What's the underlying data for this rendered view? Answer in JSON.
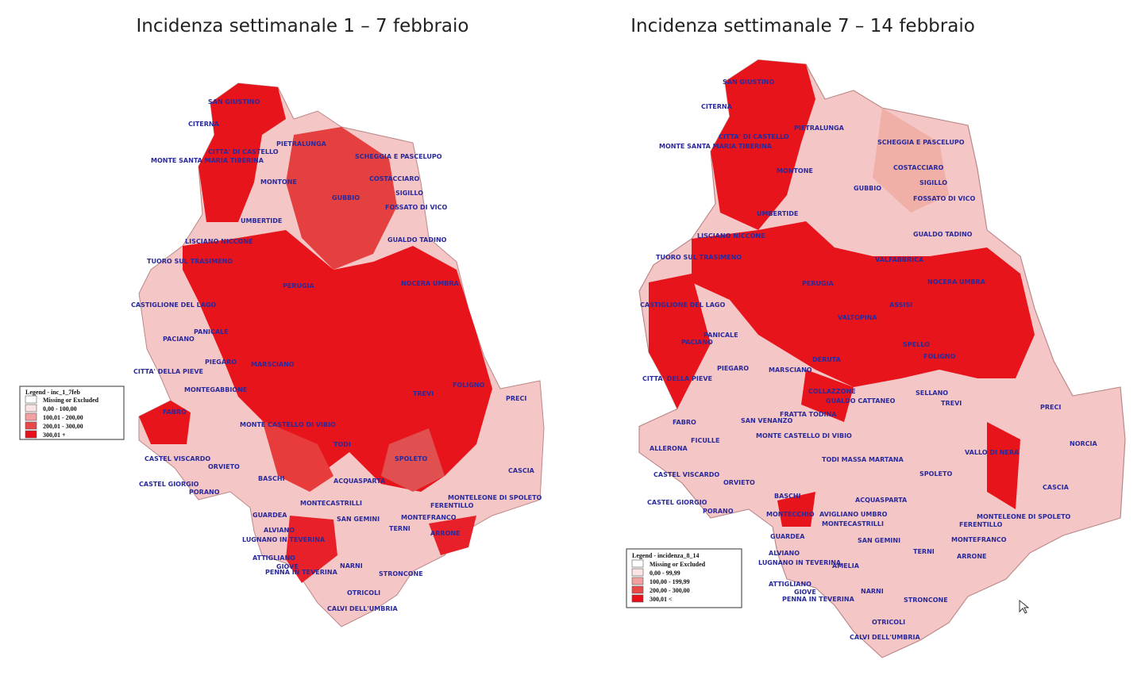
{
  "maps": [
    {
      "title": "Incidenza settimanale 1 – 7 febbraio",
      "legend": {
        "title": "Legend - inc_1_7feb",
        "items": [
          "Missing or Excluded",
          "0,00 - 100,00",
          "100,01 - 200,00",
          "200,01 - 300,00",
          "300,01 +"
        ]
      },
      "places": [
        "SAN GIUSTINO",
        "CITERNA",
        "CITTA' DI CASTELLO",
        "MONTE SANTA MARIA TIBERINA",
        "PIETRALUNGA",
        "SCHEGGIA E PASCELUPO",
        "MONTONE",
        "COSTACCIARO",
        "SIGILLO",
        "GUBBIO",
        "FOSSATO DI VICO",
        "UMBERTIDE",
        "GUALDO TADINO",
        "LISCIANO NICCONE",
        "TUORO SUL TRASIMENO",
        "CASTIGLIONE DEL LAGO",
        "PERUGIA",
        "NOCERA UMBRA",
        "PANICALE",
        "PACIANO",
        "PIEGARO",
        "CITTA' DELLA PIEVE",
        "MARSCIANO",
        "MONTEGABBIONE",
        "FABRO",
        "MONTE CASTELLO DI VIBIO",
        "TODI",
        "CASTEL VISCARDO",
        "ORVIETO",
        "CASTEL GIORGIO",
        "PORANO",
        "BASCHI",
        "ACQUASPARTA",
        "MONTECASTRILLI",
        "GUARDEA",
        "SAN GEMINI",
        "MONTEFRANCO",
        "TERNI",
        "ARRONE",
        "ALVIANO",
        "LUGNANO IN TEVERINA",
        "ATTIGLIANO",
        "GIOVE",
        "PENNA IN TEVERINA",
        "NARNI",
        "STRONCONE",
        "OTRICOLI",
        "CALVI DELL'UMBRIA",
        "SPOLETO",
        "CASCIA",
        "PRECI",
        "TREVI",
        "FOLIGNO",
        "FERENTILLO",
        "MONTELEONE DI SPOLETO"
      ]
    },
    {
      "title": "Incidenza settimanale 7 – 14 febbraio",
      "legend": {
        "title": "Legend - incidenza_8_14",
        "items": [
          "Missing or Excluded",
          "0,00 - 99,99",
          "100,00 - 199,99",
          "200,00 - 300,00",
          "300,01 <"
        ]
      },
      "places": [
        "SAN GIUSTINO",
        "CITERNA",
        "PIETRALUNGA",
        "CITTA' DI CASTELLO",
        "MONTE SANTA MARIA TIBERINA",
        "SCHEGGIA E PASCELUPO",
        "COSTACCIARO",
        "MONTONE",
        "GUBBIO",
        "SIGILLO",
        "FOSSATO DI VICO",
        "UMBERTIDE",
        "LISCIANO NICCONE",
        "GUALDO TADINO",
        "TUORO SUL TRASIMENO",
        "VALFABBRICA",
        "NOCERA UMBRA",
        "PERUGIA",
        "CASTIGLIONE DEL LAGO",
        "ASSISI",
        "VALTOPINA",
        "PANICALE",
        "PACIANO",
        "SPELLO",
        "FOLIGNO",
        "PIEGARO",
        "MARSCIANO",
        "DERUTA",
        "CITTA' DELLA PIEVE",
        "COLLAZZONE",
        "SELLANO",
        "GUALDO CATTANEO",
        "TREVI",
        "PRECI",
        "FRATTA TODINA",
        "SAN VENANZO",
        "FABRO",
        "MONTE CASTELLO DI VIBIO",
        "FICULLE",
        "NORCIA",
        "ALLERONA",
        "VALLO DI NERA",
        "TODI MASSA MARTANA",
        "CASTEL VISCARDO",
        "ORVIETO",
        "SPOLETO",
        "CASCIA",
        "CASTEL GIORGIO",
        "PORANO",
        "BASCHI",
        "ACQUASPARTA",
        "MONTECCHIO",
        "AVIGLIANO UMBRO",
        "MONTECASTRILLI",
        "MONTELEONE DI SPOLETO",
        "FERENTILLO",
        "SAN GEMINI",
        "GUARDEA",
        "MONTEFRANCO",
        "ALVIANO",
        "TERNI",
        "ARRONE",
        "LUGNANO IN TEVERINA",
        "AMELIA",
        "ATTIGLIANO",
        "GIOVE",
        "PENNA IN TEVERINA",
        "NARNI",
        "STRONCONE",
        "OTRICOLI",
        "CALVI DELL'UMBRIA"
      ]
    }
  ]
}
